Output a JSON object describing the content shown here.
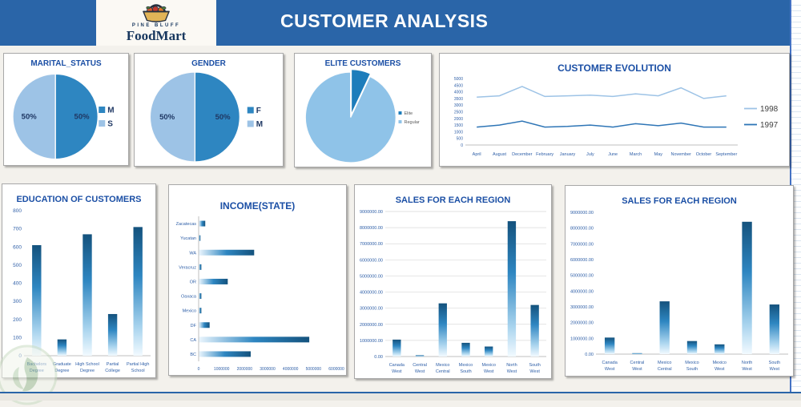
{
  "header": {
    "title": "CUSTOMER ANALYSIS",
    "logo_top": "PINE BLUFF",
    "logo_name": "FoodMart"
  },
  "theme": {
    "header_bg": "#2A65A8",
    "panel_title_color": "#1B4FA5",
    "axis_text_color": "#3060A8",
    "label_navy": "#1F3864",
    "legend_gray": "#595959",
    "grid_color": "#D9D9D9",
    "axis_line_color": "#BFBFBF",
    "dark_blue": "#2E86C1",
    "light_blue": "#9DC3E6",
    "bar_gradient_top": "#14527D",
    "bar_gradient_mid": "#2E86C1",
    "bar_gradient_low": "#A9D4EE",
    "bar_gradient_end": "#F2FAFF"
  },
  "chart_data": [
    {
      "id": "marital_status",
      "type": "pie",
      "title": "MARITAL_STATUS",
      "labels": [
        "M",
        "S"
      ],
      "values": [
        50,
        50
      ],
      "data_labels": [
        "50%",
        "50%"
      ],
      "colors": [
        "#2E86C1",
        "#9DC3E6"
      ],
      "legend_position": "right"
    },
    {
      "id": "gender",
      "type": "pie",
      "title": "GENDER",
      "labels": [
        "F",
        "M"
      ],
      "values": [
        50,
        50
      ],
      "data_labels": [
        "50%",
        "50%"
      ],
      "colors": [
        "#2E86C1",
        "#9DC3E6"
      ],
      "legend_position": "right"
    },
    {
      "id": "elite_customers",
      "type": "pie",
      "title": "ELITE CUSTOMERS",
      "labels": [
        "Elite",
        "Regular"
      ],
      "values": [
        7,
        93
      ],
      "colors": [
        "#1D7DBB",
        "#8FC3E8"
      ],
      "exploded": true,
      "legend_position": "right"
    },
    {
      "id": "customer_evolution",
      "type": "line",
      "title": "CUSTOMER EVOLUTION",
      "categories": [
        "April",
        "August",
        "December",
        "February",
        "January",
        "July",
        "June",
        "March",
        "May",
        "November",
        "October",
        "September"
      ],
      "series": [
        {
          "name": "1998",
          "color": "#9DC3E6",
          "values": [
            3600,
            3700,
            4400,
            3650,
            3700,
            3750,
            3650,
            3850,
            3700,
            4300,
            3500,
            3700
          ]
        },
        {
          "name": "1997",
          "color": "#2E75B6",
          "values": [
            1350,
            1500,
            1800,
            1350,
            1400,
            1500,
            1350,
            1600,
            1450,
            1650,
            1350,
            1350
          ]
        }
      ],
      "ylim": [
        0,
        5000
      ],
      "ytick_step": 500,
      "legend_position": "right",
      "grid": false
    },
    {
      "id": "education_of_customers",
      "type": "bar",
      "title": "EDUCATION OF CUSTOMERS",
      "categories": [
        "Bachelors Degree",
        "Graduate Degree",
        "High School Degree",
        "Partial College",
        "Partial High School"
      ],
      "values": [
        610,
        90,
        670,
        230,
        710
      ],
      "ylim": [
        0,
        800
      ],
      "ytick_step": 100,
      "gridlines": false,
      "tick_format": "int"
    },
    {
      "id": "income_state",
      "type": "hbar",
      "title": "INCOME(STATE)",
      "categories": [
        "Zacatecas",
        "Yucatan",
        "WA",
        "Veracruz",
        "OR",
        "Oaxaca",
        "Mexico",
        "DF",
        "CA",
        "BC"
      ],
      "values": [
        270000,
        60000,
        2400000,
        100000,
        1250000,
        100000,
        100000,
        460000,
        4800000,
        2250000
      ],
      "xlim": [
        0,
        6000000
      ],
      "xtick_step": 1000000
    },
    {
      "id": "sales_for_each_region_grid",
      "type": "bar",
      "title": "SALES FOR EACH REGION",
      "categories": [
        "Canada West",
        "Central West",
        "Mexico Central",
        "Mexico South",
        "Mexico West",
        "North West",
        "South West"
      ],
      "values": [
        1050000,
        80000,
        3300000,
        850000,
        620000,
        8400000,
        3200000
      ],
      "ylim": [
        0,
        9000000
      ],
      "ytick_step": 1000000,
      "gridlines": true,
      "tick_format": "decimal2"
    },
    {
      "id": "sales_for_each_region_plain",
      "type": "bar",
      "title": "SALES FOR EACH REGION",
      "categories": [
        "Canada West",
        "Central West",
        "Mexico Central",
        "Mexico South",
        "Mexico West",
        "North West",
        "South West"
      ],
      "values": [
        1050000,
        60000,
        3350000,
        830000,
        620000,
        8400000,
        3150000
      ],
      "ylim": [
        0,
        9000000
      ],
      "ytick_step": 1000000,
      "gridlines": false,
      "tick_format": "decimal2"
    }
  ]
}
